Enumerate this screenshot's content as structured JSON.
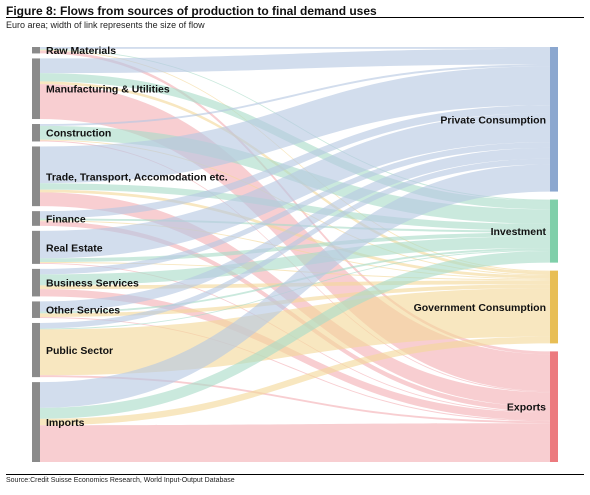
{
  "title": "Figure 8: Flows from sources of production to final demand uses",
  "subtitle": "Euro area; width of link represents the size of flow",
  "source": "Source:Credit Suisse Economics Research, World Input-Output Database",
  "colors": {
    "private": "#b7c8e2",
    "investment": "#a9dcc8",
    "government": "#f3d89a",
    "exports": "#f4b0b4",
    "source_bar": "#8a8a8a",
    "private_bar": "#8ba7cf",
    "investment_bar": "#7fcfa9",
    "government_bar": "#e8be55",
    "exports_bar": "#ec7a7e"
  },
  "sources": [
    {
      "id": "raw",
      "label": "Raw Materials"
    },
    {
      "id": "manu",
      "label": "Manufacturing & Utilities"
    },
    {
      "id": "cons",
      "label": "Construction"
    },
    {
      "id": "trade",
      "label": "Trade, Transport, Accomodation etc."
    },
    {
      "id": "fin",
      "label": "Finance"
    },
    {
      "id": "re",
      "label": "Real Estate"
    },
    {
      "id": "bus",
      "label": "Business Services"
    },
    {
      "id": "oth",
      "label": "Other Services"
    },
    {
      "id": "pub",
      "label": "Public Sector"
    },
    {
      "id": "imp",
      "label": "Imports"
    }
  ],
  "targets": [
    {
      "id": "private",
      "label": "Private Consumption"
    },
    {
      "id": "investment",
      "label": "Investment"
    },
    {
      "id": "government",
      "label": "Government Consumption"
    },
    {
      "id": "exports",
      "label": "Exports"
    }
  ],
  "flows": {
    "raw": {
      "private": 2,
      "investment": 1,
      "government": 1,
      "exports": 3
    },
    "manu": {
      "private": 16,
      "investment": 9,
      "government": 3,
      "exports": 38
    },
    "cons": {
      "private": 2,
      "investment": 15,
      "government": 1,
      "exports": 1
    },
    "trade": {
      "private": 40,
      "investment": 7,
      "government": 3,
      "exports": 15
    },
    "fin": {
      "private": 8,
      "investment": 2,
      "government": 1,
      "exports": 5
    },
    "re": {
      "private": 30,
      "investment": 4,
      "government": 1,
      "exports": 1
    },
    "bus": {
      "private": 6,
      "investment": 12,
      "government": 4,
      "exports": 8
    },
    "oth": {
      "private": 11,
      "investment": 2,
      "government": 4,
      "exports": 1
    },
    "pub": {
      "private": 6,
      "investment": 1,
      "government": 50,
      "exports": 2
    },
    "imp": {
      "private": 28,
      "investment": 12,
      "government": 7,
      "exports": 40
    }
  }
}
